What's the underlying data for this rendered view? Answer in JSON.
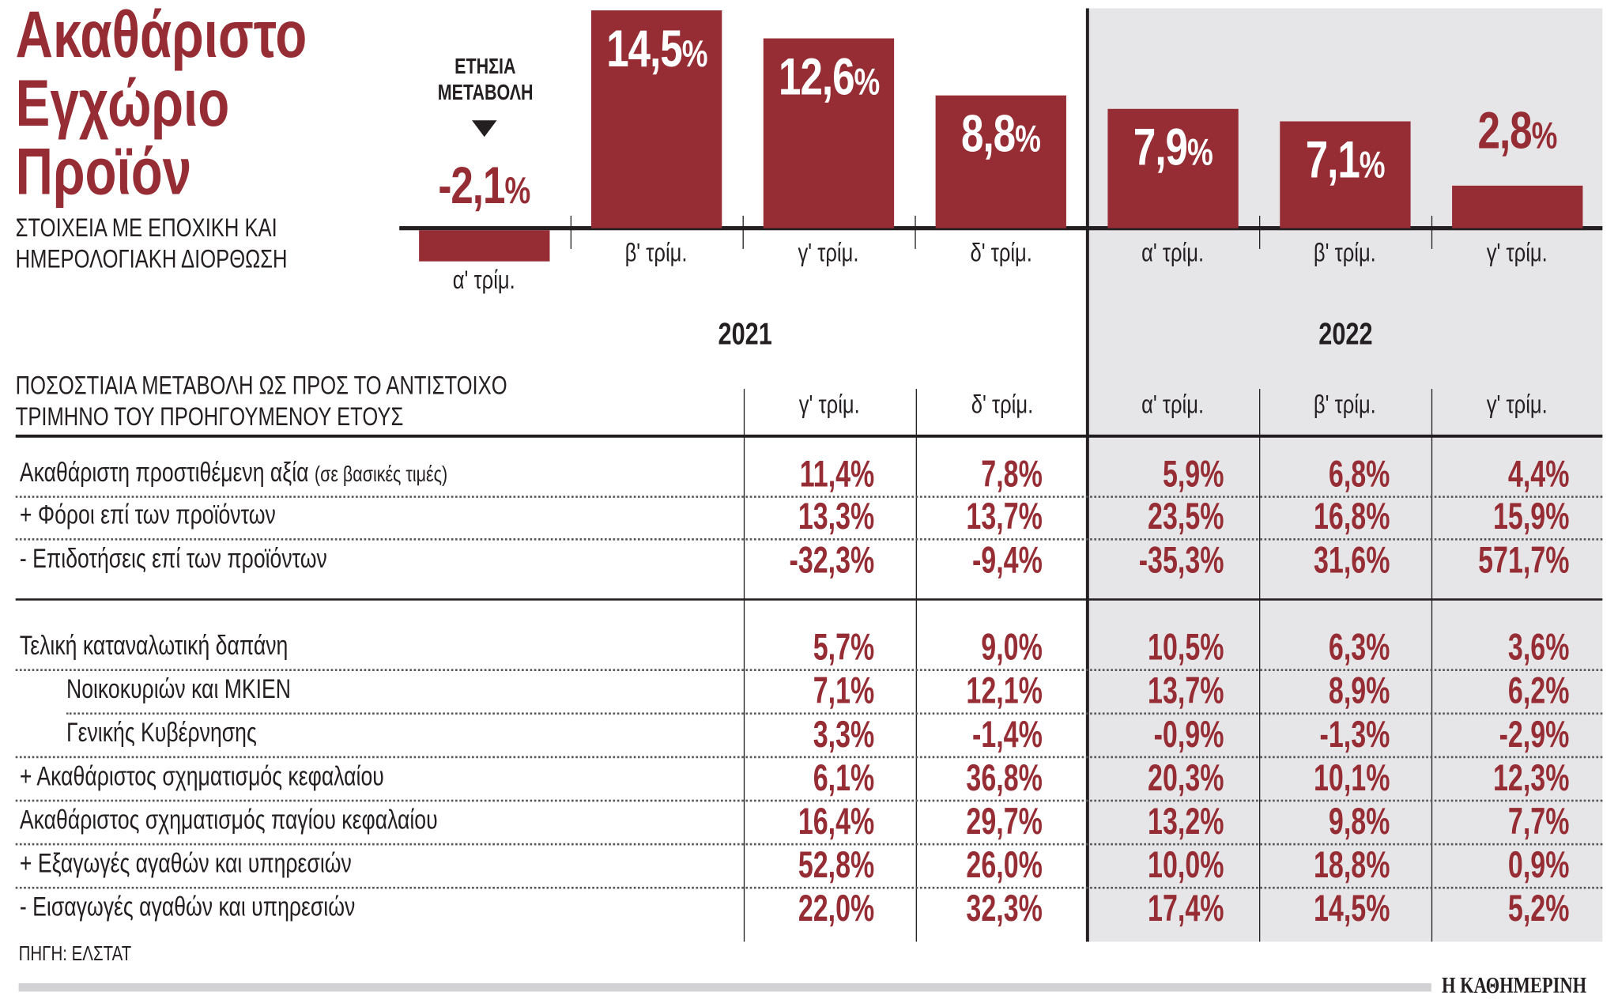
{
  "title": [
    "Ακαθάριστο",
    "Εγχώριο",
    "Προϊόν"
  ],
  "subtitle": [
    "ΣΤΟΙΧΕΙΑ ΜΕ ΕΠΟΧΙΚΗ ΚΑΙ",
    "ΗΜΕΡΟΛΟΓΙΑΚΗ ΔΙΟΡΘΩΣΗ"
  ],
  "annual_change_label": [
    "ΕΤΗΣΙΑ",
    "ΜΕΤΑΒΟΛΗ"
  ],
  "chart_data": {
    "type": "bar",
    "categories": [
      "α' τρίμ.",
      "β' τρίμ.",
      "γ' τρίμ.",
      "δ' τρίμ.",
      "α' τρίμ.",
      "β' τρίμ.",
      "γ' τρίμ."
    ],
    "groups": [
      {
        "label": "2021",
        "categories": [
          0,
          1,
          2,
          3
        ]
      },
      {
        "label": "2022",
        "categories": [
          4,
          5,
          6
        ]
      }
    ],
    "values": [
      -2.1,
      14.5,
      12.6,
      8.8,
      7.9,
      7.1,
      2.8
    ],
    "data_labels": [
      "-2,1",
      "14,5",
      "12,6",
      "8,8",
      "7,9",
      "7,1",
      "2,8"
    ],
    "unit": "%",
    "bar_color": "#962d35",
    "highlight_background": "#e6e6e8",
    "grid": false
  },
  "table": {
    "heading": [
      "ΠΟΣΟΣΤΙΑΙΑ ΜΕΤΑΒΟΛΗ ΩΣ ΠΡΟΣ ΤΟ ΑΝΤΙΣΤΟΙΧΟ",
      "ΤΡΙΜΗΝΟ ΤΟΥ ΠΡΟΗΓΟΥΜΕΝΟΥ ΕΤΟΥΣ"
    ],
    "columns": [
      "γ' τρίμ.",
      "δ' τρίμ.",
      "α' τρίμ.",
      "β' τρίμ.",
      "γ' τρίμ."
    ],
    "rows": [
      {
        "label": "Ακαθάριστη προστιθέμενη αξία",
        "note": "(σε βασικές τιμές)",
        "values": [
          "11,4%",
          "7,8%",
          "5,9%",
          "6,8%",
          "4,4%"
        ]
      },
      {
        "label": "+ Φόροι επί των προϊόντων",
        "values": [
          "13,3%",
          "13,7%",
          "23,5%",
          "16,8%",
          "15,9%"
        ]
      },
      {
        "label": "- Επιδοτήσεις επί των προϊόντων",
        "values": [
          "-32,3%",
          "-9,4%",
          "-35,3%",
          "31,6%",
          "571,7%"
        ]
      },
      {
        "label": "Τελική καταναλωτική δαπάνη",
        "values": [
          "5,7%",
          "9,0%",
          "10,5%",
          "6,3%",
          "3,6%"
        ]
      },
      {
        "label": "Νοικοκυριών και ΜΚΙΕΝ",
        "indent": true,
        "values": [
          "7,1%",
          "12,1%",
          "13,7%",
          "8,9%",
          "6,2%"
        ]
      },
      {
        "label": "Γενικής Κυβέρνησης",
        "indent": true,
        "values": [
          "3,3%",
          "-1,4%",
          "-0,9%",
          "-1,3%",
          "-2,9%"
        ]
      },
      {
        "label": "+ Ακαθάριστος σχηματισμός κεφαλαίου",
        "values": [
          "6,1%",
          "36,8%",
          "20,3%",
          "10,1%",
          "12,3%"
        ]
      },
      {
        "label": "Ακαθάριστος σχηματισμός παγίου κεφαλαίου",
        "values": [
          "16,4%",
          "29,7%",
          "13,2%",
          "9,8%",
          "7,7%"
        ]
      },
      {
        "label": "+ Εξαγωγές αγαθών και υπηρεσιών",
        "values": [
          "52,8%",
          "26,0%",
          "10,0%",
          "18,8%",
          "0,9%"
        ]
      },
      {
        "label": " - Εισαγωγές αγαθών και υπηρεσιών",
        "values": [
          "22,0%",
          "32,3%",
          "17,4%",
          "14,5%",
          "5,2%"
        ]
      }
    ]
  },
  "source": "ΠΗΓΗ: ΕΛΣΤΑΤ",
  "brand": "Η ΚΑΘΗΜΕΡΙΝΗ"
}
